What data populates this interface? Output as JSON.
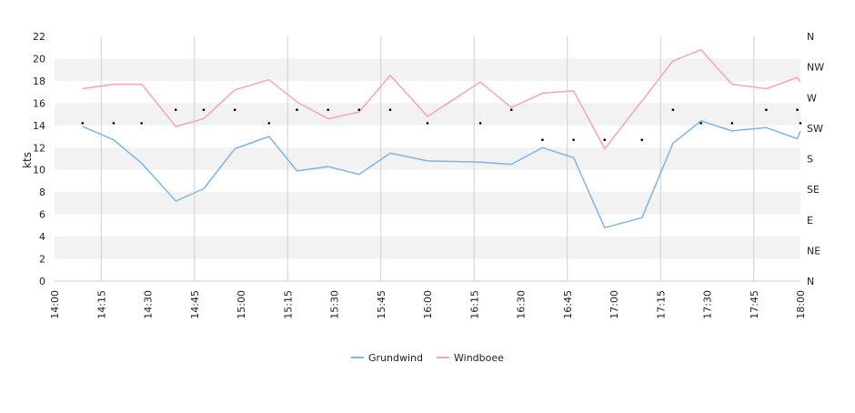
{
  "chart_data": {
    "type": "line",
    "title": "",
    "xlabel": "",
    "ylabel": "kts",
    "ylim": [
      0,
      22
    ],
    "y_ticks": [
      "0",
      "2",
      "4",
      "6",
      "8",
      "10",
      "12",
      "14",
      "16",
      "18",
      "20",
      "22"
    ],
    "x_range_minutes": [
      0,
      240
    ],
    "x_ticks": [
      "14:00",
      "14:15",
      "14:30",
      "14:45",
      "15:00",
      "15:15",
      "15:30",
      "15:45",
      "16:00",
      "16:15",
      "16:30",
      "16:45",
      "17:00",
      "17:15",
      "17:30",
      "17:45",
      "18:00"
    ],
    "x_ticks_minutes": [
      0,
      15,
      30,
      45,
      60,
      75,
      90,
      105,
      120,
      135,
      150,
      165,
      180,
      195,
      210,
      225,
      240
    ],
    "y2_ticks": [
      "N",
      "NE",
      "E",
      "SE",
      "S",
      "SW",
      "W",
      "NW",
      "N"
    ],
    "grid": true,
    "legend": "bottom-center",
    "series": [
      {
        "name": "Grundwind",
        "color": "#7cb5ec",
        "x": [
          9,
          19,
          28,
          39,
          48,
          58,
          69,
          78,
          88,
          98,
          108,
          120,
          137,
          147,
          157,
          167,
          177,
          189,
          199,
          208,
          218,
          229,
          239,
          240
        ],
        "y": [
          13.9,
          12.7,
          10.6,
          7.2,
          8.3,
          11.9,
          13.0,
          9.9,
          10.3,
          9.6,
          11.5,
          10.8,
          10.7,
          10.5,
          12.0,
          11.1,
          4.8,
          5.7,
          12.4,
          14.4,
          13.5,
          13.8,
          12.8,
          13.5
        ]
      },
      {
        "name": "Windboee",
        "color": "#f7a1c4",
        "x": [
          9,
          19,
          28,
          39,
          48,
          58,
          69,
          78,
          88,
          98,
          108,
          120,
          137,
          147,
          157,
          167,
          177,
          189,
          199,
          208,
          218,
          229,
          239,
          240
        ],
        "y": [
          17.3,
          17.7,
          17.7,
          13.9,
          14.6,
          17.2,
          18.1,
          16.1,
          14.6,
          15.2,
          18.5,
          14.8,
          17.9,
          15.6,
          16.9,
          17.1,
          11.9,
          16.2,
          19.8,
          20.8,
          17.7,
          17.3,
          18.3,
          17.9
        ]
      }
    ],
    "direction_points": {
      "x": [
        9,
        19,
        28,
        39,
        48,
        58,
        69,
        78,
        88,
        98,
        108,
        120,
        137,
        147,
        157,
        167,
        177,
        189,
        199,
        208,
        218,
        229,
        239,
        240
      ],
      "y": [
        14.2,
        14.2,
        14.2,
        15.4,
        15.4,
        15.4,
        14.2,
        15.4,
        15.4,
        15.4,
        15.4,
        14.2,
        14.2,
        15.4,
        12.7,
        12.7,
        12.7,
        12.7,
        15.4,
        14.2,
        14.2,
        15.4,
        15.4,
        14.2
      ]
    }
  }
}
